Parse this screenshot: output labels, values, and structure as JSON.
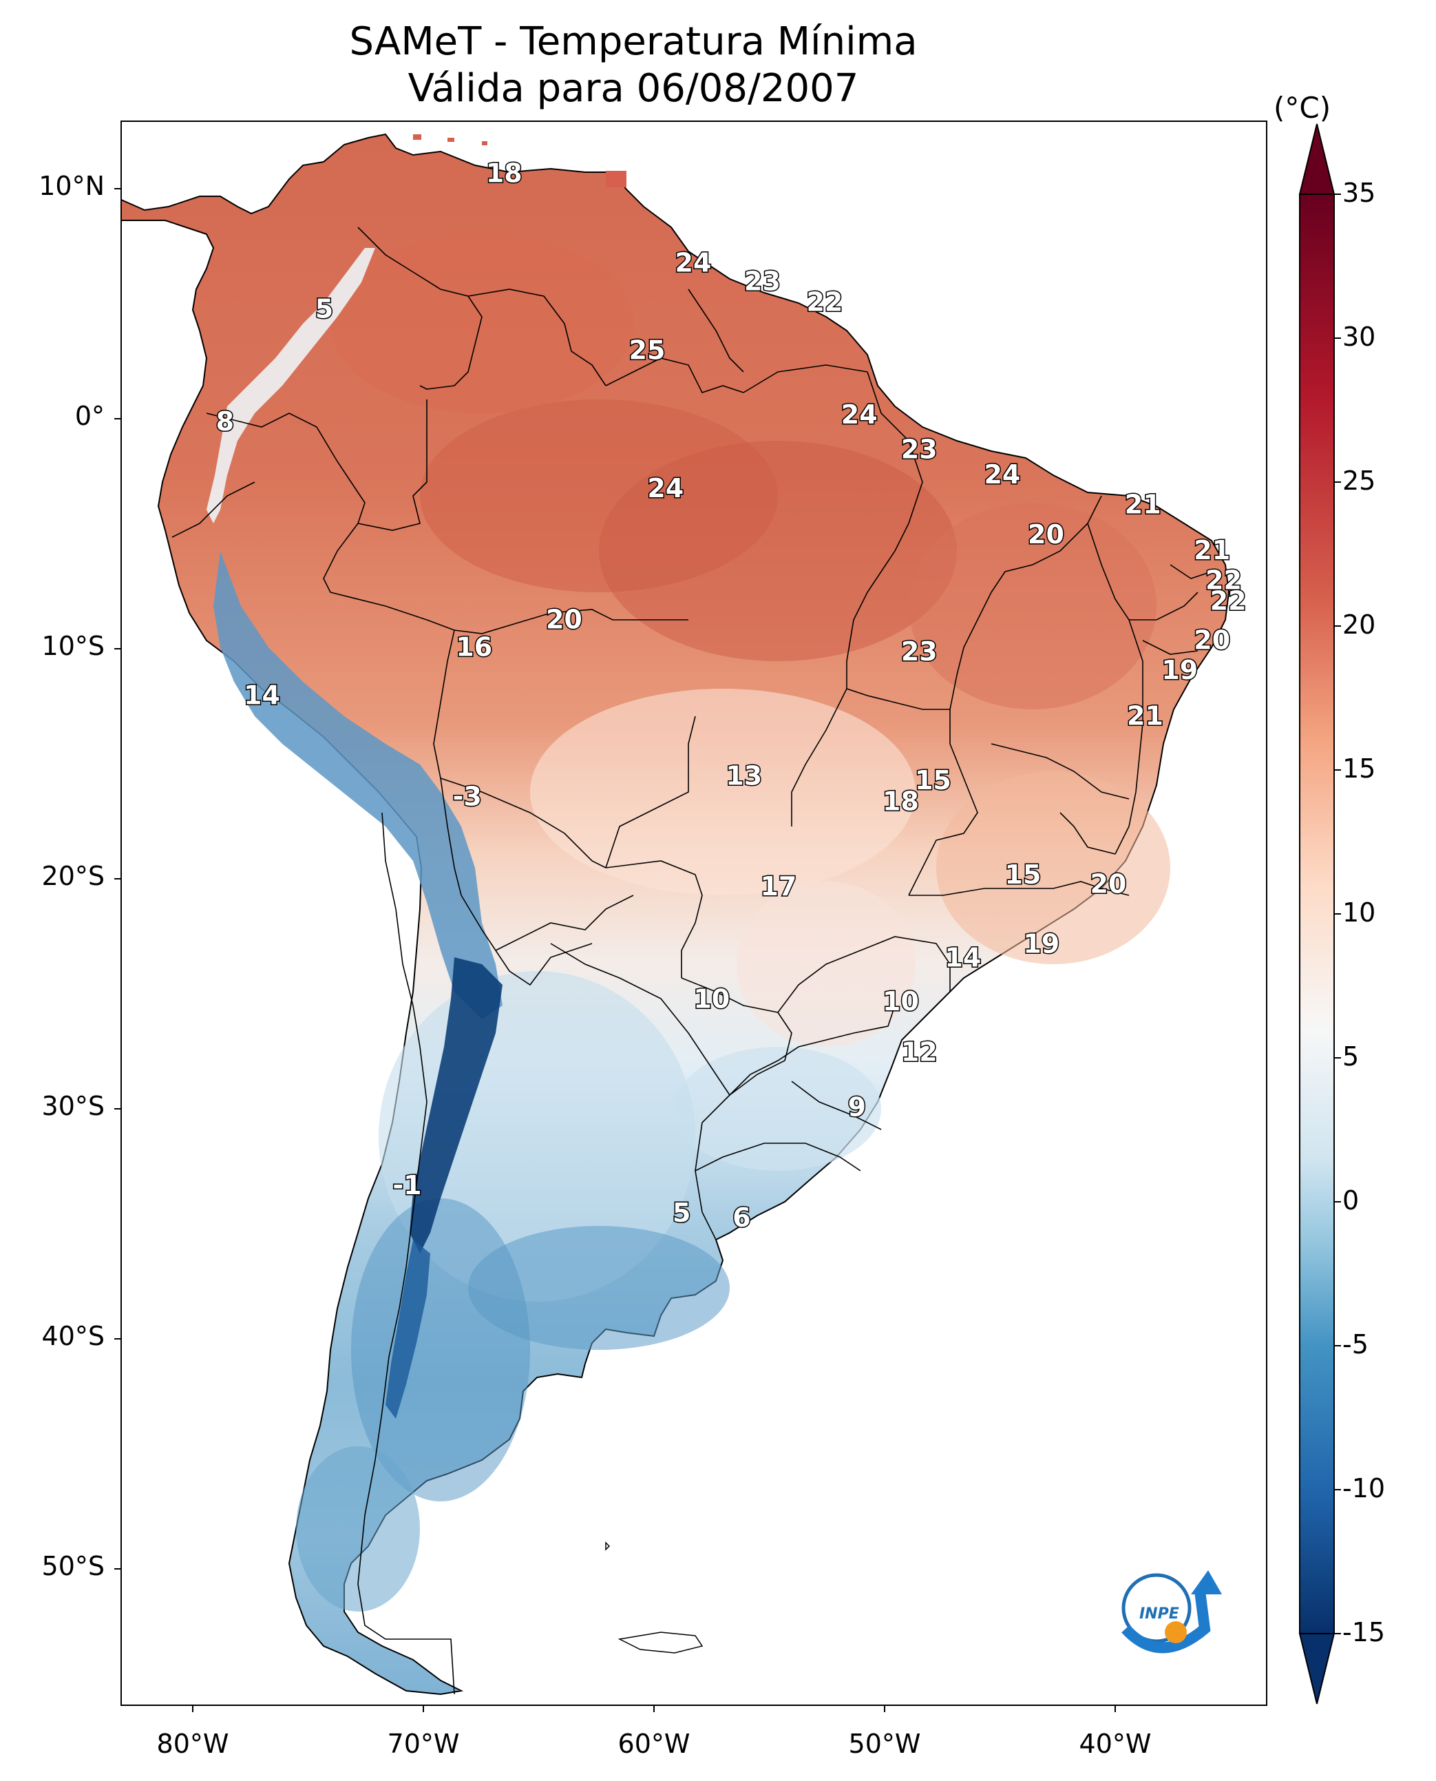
{
  "title": "SAMeT - Temperatura Mínima",
  "subtitle": "Válida para 06/08/2007",
  "colorbar": {
    "unit": "(°C)",
    "tick_labels": [
      "35",
      "30",
      "25",
      "20",
      "15",
      "10",
      "5",
      "0",
      "-5",
      "-10",
      "-15"
    ],
    "range": [
      -15,
      35
    ],
    "colors": [
      "#08306b",
      "#2166ac",
      "#4393c3",
      "#92c5de",
      "#d1e5f0",
      "#f7f7f7",
      "#fddbc7",
      "#f4a582",
      "#d6604d",
      "#b2182b",
      "#67001f"
    ]
  },
  "axes": {
    "lat_labels": [
      "10°N",
      "0°",
      "10°S",
      "20°S",
      "30°S",
      "40°S",
      "50°S"
    ],
    "lon_labels": [
      "80°W",
      "70°W",
      "60°W",
      "50°W",
      "40°W"
    ]
  },
  "station_values": [
    {
      "text": "18",
      "lon": -66.5,
      "lat": 10.6
    },
    {
      "text": "5",
      "lon": -74.3,
      "lat": 4.7
    },
    {
      "text": "24",
      "lon": -58.3,
      "lat": 6.7
    },
    {
      "text": "23",
      "lon": -55.3,
      "lat": 5.9
    },
    {
      "text": "22",
      "lon": -52.6,
      "lat": 5.0
    },
    {
      "text": "25",
      "lon": -60.3,
      "lat": 2.9
    },
    {
      "text": "8",
      "lon": -78.6,
      "lat": -0.2
    },
    {
      "text": "24",
      "lon": -51.1,
      "lat": 0.1
    },
    {
      "text": "23",
      "lon": -48.5,
      "lat": -1.4
    },
    {
      "text": "24",
      "lon": -44.9,
      "lat": -2.5
    },
    {
      "text": "24",
      "lon": -59.5,
      "lat": -3.1
    },
    {
      "text": "21",
      "lon": -38.8,
      "lat": -3.8
    },
    {
      "text": "20",
      "lon": -43.0,
      "lat": -5.1
    },
    {
      "text": "21",
      "lon": -35.8,
      "lat": -5.8
    },
    {
      "text": "22",
      "lon": -35.3,
      "lat": -7.1
    },
    {
      "text": "22",
      "lon": -35.1,
      "lat": -8.0
    },
    {
      "text": "20",
      "lon": -63.9,
      "lat": -8.8
    },
    {
      "text": "16",
      "lon": -67.8,
      "lat": -10.0
    },
    {
      "text": "20",
      "lon": -35.8,
      "lat": -9.7
    },
    {
      "text": "23",
      "lon": -48.5,
      "lat": -10.2
    },
    {
      "text": "19",
      "lon": -37.2,
      "lat": -11.0
    },
    {
      "text": "14",
      "lon": -77.0,
      "lat": -12.1
    },
    {
      "text": "21",
      "lon": -38.7,
      "lat": -13.0
    },
    {
      "text": "13",
      "lon": -56.1,
      "lat": -15.6
    },
    {
      "text": "15",
      "lon": -47.9,
      "lat": -15.8
    },
    {
      "text": "18",
      "lon": -49.3,
      "lat": -16.7
    },
    {
      "text": "-3",
      "lon": -68.1,
      "lat": -16.5
    },
    {
      "text": "17",
      "lon": -54.6,
      "lat": -20.4
    },
    {
      "text": "15",
      "lon": -44.0,
      "lat": -19.9
    },
    {
      "text": "20",
      "lon": -40.3,
      "lat": -20.3
    },
    {
      "text": "19",
      "lon": -43.2,
      "lat": -22.9
    },
    {
      "text": "14",
      "lon": -46.6,
      "lat": -23.5
    },
    {
      "text": "10",
      "lon": -57.5,
      "lat": -25.3
    },
    {
      "text": "10",
      "lon": -49.3,
      "lat": -25.4
    },
    {
      "text": "12",
      "lon": -48.5,
      "lat": -27.6
    },
    {
      "text": "9",
      "lon": -51.2,
      "lat": -30.0
    },
    {
      "text": "-1",
      "lon": -70.7,
      "lat": -33.4
    },
    {
      "text": "5",
      "lon": -58.8,
      "lat": -34.6
    },
    {
      "text": "6",
      "lon": -56.2,
      "lat": -34.8
    }
  ]
}
